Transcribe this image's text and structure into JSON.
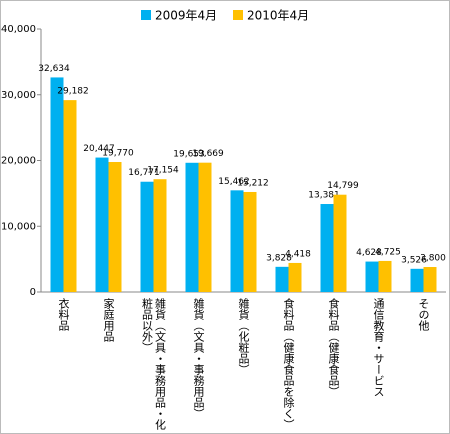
{
  "chart_data": {
    "type": "bar",
    "categories": [
      "衣料品",
      "家庭用品",
      "雑貨（文具・事務用品・化粧品以外）",
      "雑貨（文具・事務用品）",
      "雑貨（化粧品）",
      "食料品（健康食品を除く）",
      "食料品（健康食品）",
      "通信教育・サービス",
      "その他"
    ],
    "series": [
      {
        "name": "2009年4月",
        "color": "#00b0f0",
        "values": [
          32634,
          20447,
          16771,
          19653,
          15462,
          3828,
          13381,
          4628,
          3526
        ],
        "value_labels": [
          "32,634",
          "20,447",
          "16,771",
          "19,653",
          "15,462",
          "3,828",
          "13,381",
          "4,628",
          "3,526"
        ]
      },
      {
        "name": "2010年4月",
        "color": "#ffc000",
        "values": [
          29182,
          19770,
          17154,
          19669,
          15212,
          4418,
          14799,
          4725,
          3800
        ],
        "value_labels": [
          "29,182",
          "19,770",
          "17,154",
          "19,669",
          "15,212",
          "4,418",
          "14,799",
          "4,725",
          "3,800"
        ]
      }
    ],
    "ylim": [
      0,
      40000
    ],
    "yticks": [
      0,
      {
        "value": 10000,
        "label": "10,000"
      },
      {
        "value": 20000,
        "label": "20,000"
      },
      {
        "value": 30000,
        "label": "30,000"
      },
      {
        "value": 40000,
        "label": "40,000"
      }
    ],
    "grid": false
  }
}
